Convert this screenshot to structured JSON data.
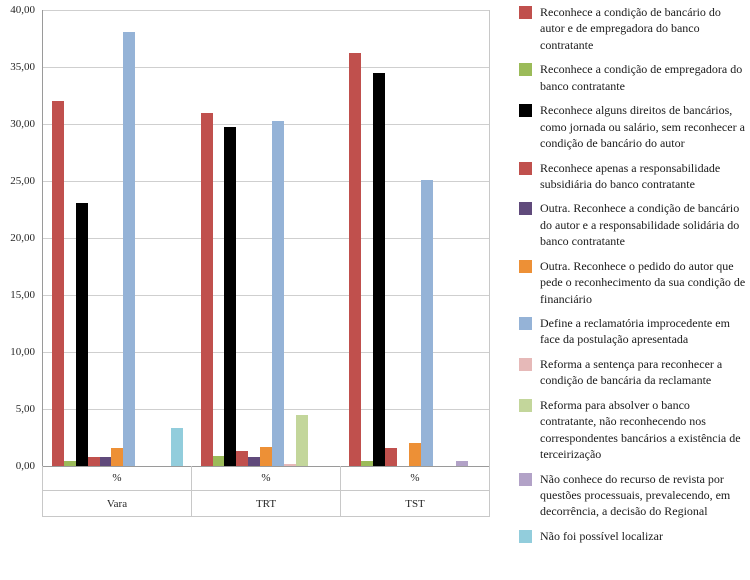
{
  "chart_data": {
    "type": "bar",
    "title": "",
    "xlabel": "",
    "ylabel": "",
    "ylim": [
      0,
      40
    ],
    "ytick_step": 5,
    "grid": true,
    "legend_position": "right",
    "decimal_separator": ",",
    "ytick_labels": [
      "40,00",
      "35,00",
      "30,00",
      "25,00",
      "20,00",
      "15,00",
      "10,00",
      "5,00",
      "0,00"
    ],
    "groups": [
      {
        "unit": "%",
        "label": "Vara"
      },
      {
        "unit": "%",
        "label": "TRT"
      },
      {
        "unit": "%",
        "label": "TST"
      }
    ],
    "series": [
      {
        "name": "Reconhece a condição de bancário do autor e de empregadora do banco contratante",
        "color": "#C0504D",
        "values": [
          32.0,
          31.0,
          36.2
        ]
      },
      {
        "name": "Reconhece a condição de empregadora do banco contratante",
        "color": "#9BBB59",
        "values": [
          0.4,
          0.9,
          0.4
        ]
      },
      {
        "name": "Reconhece alguns direitos de bancários, como jornada ou salário, sem reconhecer a condição de bancário do autor",
        "color": "#000000",
        "values": [
          23.1,
          29.7,
          34.5
        ]
      },
      {
        "name": "Reconhece apenas a responsabilidade subsidiária do banco contratante",
        "color": "#C0504D",
        "values": [
          0.8,
          1.3,
          1.6
        ]
      },
      {
        "name": "Outra. Reconhece a condição de bancário do autor e a responsabilidade solidária do banco contratante",
        "color": "#604A7B",
        "values": [
          0.8,
          0.8,
          0.0
        ]
      },
      {
        "name": "Outra. Reconhece o pedido do autor que pede o reconhecimento da sua condição de financiário",
        "color": "#ED9036",
        "values": [
          1.6,
          1.7,
          2.0
        ]
      },
      {
        "name": "Define a reclamatória improcedente em face da postulação apresentada",
        "color": "#95B3D7",
        "values": [
          38.1,
          30.3,
          25.1
        ]
      },
      {
        "name": "Reforma a sentença para reconhecer a condição de bancária da reclamante",
        "color": "#E6B9B8",
        "values": [
          0.0,
          0.2,
          0.0
        ]
      },
      {
        "name": "Reforma para absolver o banco contratante, não reconhecendo nos correspondentes bancários a existência de terceirização",
        "color": "#C3D69B",
        "values": [
          0.0,
          4.5,
          0.0
        ]
      },
      {
        "name": "Não conhece do recurso de revista por questões processuais, prevalecendo, em decorrência, a decisão do Regional",
        "color": "#B2A2C7",
        "values": [
          0.0,
          0.0,
          0.4
        ]
      },
      {
        "name": "Não foi possível localizar",
        "color": "#92CDDC",
        "values": [
          3.3,
          0.0,
          0.0
        ]
      }
    ]
  }
}
